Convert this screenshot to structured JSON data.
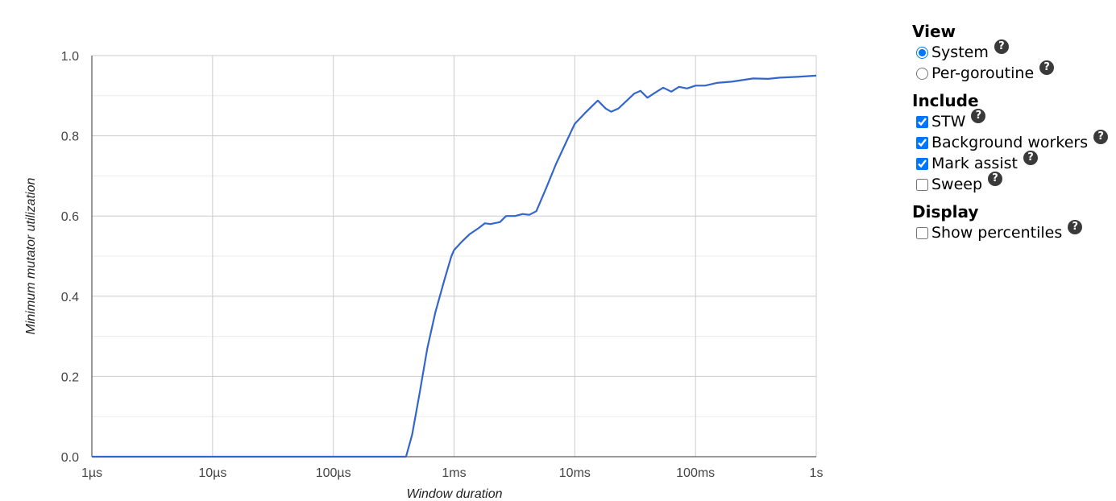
{
  "chart_data": {
    "type": "line",
    "xscale": "log",
    "xlabel": "Window duration",
    "ylabel": "Minimum mutator utilization",
    "ylim": [
      0,
      1
    ],
    "xlim": [
      "1µs",
      "1s"
    ],
    "x_ticks": [
      "1µs",
      "10µs",
      "100µs",
      "1ms",
      "10ms",
      "100ms",
      "1s"
    ],
    "y_ticks": [
      "0.0",
      "0.2",
      "0.4",
      "0.6",
      "0.8",
      "1.0"
    ],
    "grid": true,
    "line_color": "#3366cc",
    "series": [
      {
        "x": [
          "1µs",
          "10µs",
          "100µs",
          "400µs",
          "450µs",
          "520µs",
          "600µs",
          "700µs",
          "830µs",
          "950µs",
          "1ms",
          "1.15ms",
          "1.35ms",
          "1.6ms",
          "1.8ms",
          "2ms",
          "2.4ms",
          "2.7ms",
          "3.2ms",
          "3.7ms",
          "4.2ms",
          "4.8ms",
          "5.8ms",
          "7ms",
          "8.5ms",
          "10ms",
          "12ms",
          "14ms",
          "15.5ms",
          "18ms",
          "20ms",
          "23ms",
          "27ms",
          "31ms",
          "35ms",
          "40ms",
          "46ms",
          "54ms",
          "63ms",
          "73ms",
          "85ms",
          "100ms",
          "120ms",
          "150ms",
          "200ms",
          "300ms",
          "400ms",
          "500ms",
          "700ms",
          "1s"
        ],
        "y": [
          0,
          0,
          0,
          0,
          0.055,
          0.16,
          0.27,
          0.36,
          0.44,
          0.5,
          0.515,
          0.535,
          0.555,
          0.57,
          0.582,
          0.58,
          0.585,
          0.6,
          0.6,
          0.605,
          0.603,
          0.612,
          0.67,
          0.73,
          0.785,
          0.83,
          0.855,
          0.875,
          0.888,
          0.868,
          0.86,
          0.868,
          0.888,
          0.905,
          0.912,
          0.895,
          0.907,
          0.92,
          0.91,
          0.922,
          0.918,
          0.925,
          0.925,
          0.932,
          0.935,
          0.943,
          0.942,
          0.945,
          0.947,
          0.95
        ]
      }
    ]
  },
  "controls": {
    "view": {
      "title": "View",
      "options": [
        {
          "label": "System",
          "selected": true
        },
        {
          "label": "Per-goroutine",
          "selected": false
        }
      ]
    },
    "include": {
      "title": "Include",
      "options": [
        {
          "label": "STW",
          "checked": true
        },
        {
          "label": "Background workers",
          "checked": true
        },
        {
          "label": "Mark assist",
          "checked": true
        },
        {
          "label": "Sweep",
          "checked": false
        }
      ]
    },
    "display": {
      "title": "Display",
      "options": [
        {
          "label": "Show percentiles",
          "checked": false
        }
      ]
    },
    "help_icon_glyph": "?"
  }
}
